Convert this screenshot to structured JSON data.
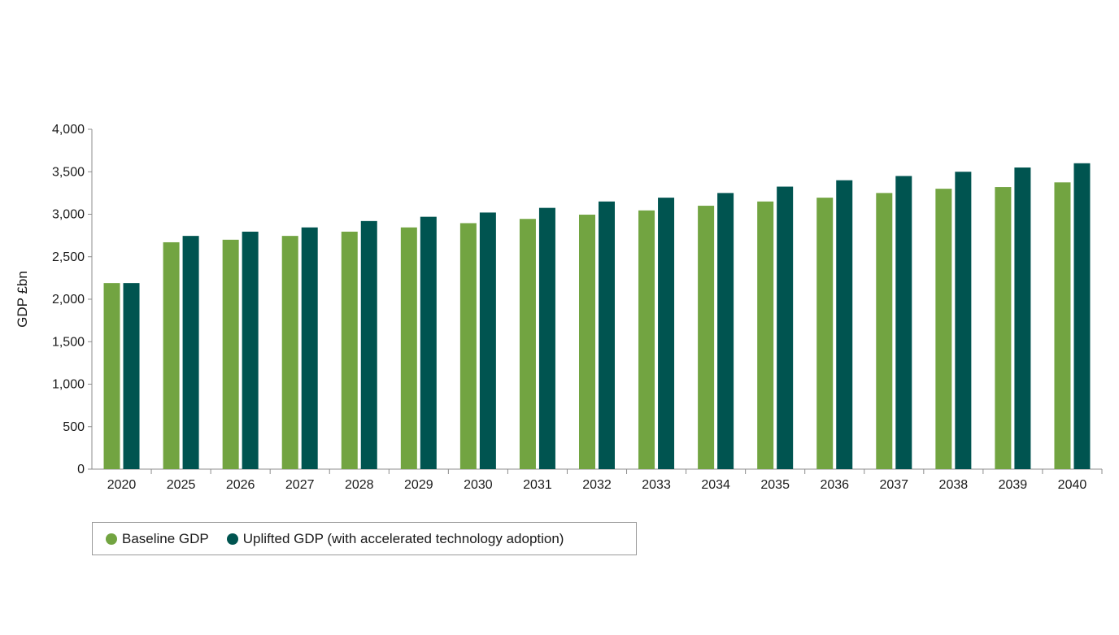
{
  "chart_data": {
    "type": "bar",
    "ylabel": "GDP £bn",
    "xlabel": "",
    "ylim": [
      0,
      4000
    ],
    "yticks": [
      "0",
      "500",
      "1,000",
      "1,500",
      "2,000",
      "2,500",
      "3,000",
      "3,500",
      "4,000"
    ],
    "ytick_values": [
      0,
      500,
      1000,
      1500,
      2000,
      2500,
      3000,
      3500,
      4000
    ],
    "grid": false,
    "legend_position": "bottom-left",
    "categories": [
      "2020",
      "2025",
      "2026",
      "2027",
      "2028",
      "2029",
      "2030",
      "2031",
      "2032",
      "2033",
      "2034",
      "2035",
      "2036",
      "2037",
      "2038",
      "2039",
      "2040"
    ],
    "series": [
      {
        "name": "Baseline GDP",
        "color": "#72a441",
        "values": [
          2190,
          2670,
          2700,
          2745,
          2795,
          2845,
          2895,
          2945,
          2995,
          3045,
          3100,
          3150,
          3195,
          3250,
          3300,
          3320,
          3375
        ]
      },
      {
        "name": "Uplifted GDP (with accelerated technology adoption)",
        "color": "#005450",
        "values": [
          2190,
          2745,
          2795,
          2845,
          2920,
          2970,
          3020,
          3075,
          3150,
          3195,
          3250,
          3325,
          3400,
          3450,
          3500,
          3550,
          3600
        ]
      }
    ]
  },
  "legend": {
    "items": [
      {
        "label": "Baseline GDP",
        "color": "#72a441",
        "icon": "circle-swatch"
      },
      {
        "label": "Uplifted GDP (with accelerated technology adoption)",
        "color": "#005450",
        "icon": "circle-swatch"
      }
    ]
  }
}
